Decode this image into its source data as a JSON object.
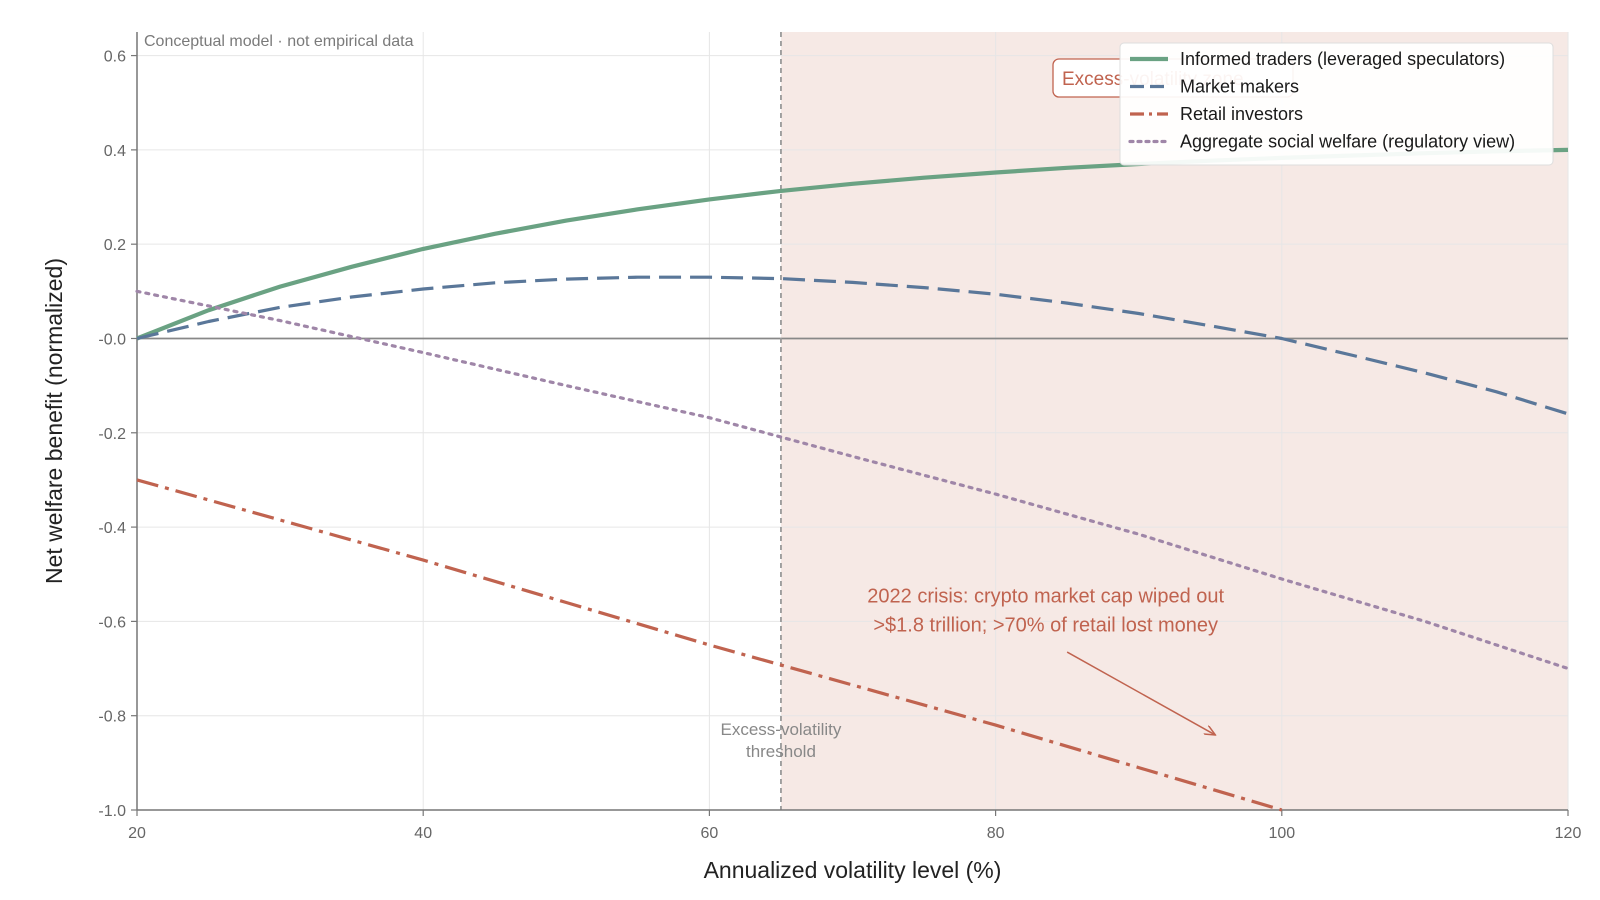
{
  "chart_data": {
    "type": "line",
    "title": "",
    "xlabel": "Annualized volatility level (%)",
    "ylabel": "Net welfare benefit (normalized)",
    "xlim": [
      20,
      120
    ],
    "ylim": [
      -1.0,
      0.65
    ],
    "x_ticks": [
      20,
      40,
      60,
      80,
      100,
      120
    ],
    "y_ticks": [
      0.6,
      0.4,
      0.2,
      0.0,
      -0.2,
      -0.4,
      -0.6,
      -0.8,
      -1.0
    ],
    "y_tick_labels": [
      "0.6",
      "0.4",
      "0.2",
      "-0.0",
      "-0.2",
      "-0.4",
      "-0.6",
      "-0.8",
      "-1.0"
    ],
    "x_tick_labels": [
      "20",
      "40",
      "60",
      "80",
      "100",
      "120"
    ],
    "grid": true,
    "legend_position": "top-right",
    "note": "Conceptual model · not empirical data",
    "series": [
      {
        "name": "Informed traders (leveraged speculators)",
        "color": "#6aa283",
        "style": "solid",
        "x": [
          20,
          25,
          30,
          35,
          40,
          45,
          50,
          55,
          60,
          65,
          70,
          75,
          80,
          85,
          90,
          95,
          100,
          105,
          110,
          115,
          120
        ],
        "y": [
          0.0,
          0.06,
          0.11,
          0.152,
          0.19,
          0.222,
          0.25,
          0.274,
          0.295,
          0.313,
          0.328,
          0.341,
          0.352,
          0.362,
          0.37,
          0.377,
          0.383,
          0.388,
          0.393,
          0.397,
          0.4
        ]
      },
      {
        "name": "Market makers",
        "color": "#5a7799",
        "style": "dashed",
        "x": [
          20,
          25,
          30,
          35,
          40,
          45,
          50,
          55,
          60,
          65,
          70,
          75,
          80,
          85,
          90,
          95,
          100,
          105,
          110,
          115,
          120
        ],
        "y": [
          0.0,
          0.036,
          0.066,
          0.088,
          0.105,
          0.118,
          0.126,
          0.13,
          0.13,
          0.127,
          0.119,
          0.108,
          0.094,
          0.075,
          0.053,
          0.027,
          0.0,
          -0.036,
          -0.073,
          -0.113,
          -0.16
        ]
      },
      {
        "name": "Retail investors",
        "color": "#c0634f",
        "style": "dashdot",
        "x": [
          20,
          30,
          40,
          50,
          60,
          70,
          80,
          90,
          100
        ],
        "y": [
          -0.3,
          -0.385,
          -0.47,
          -0.56,
          -0.65,
          -0.735,
          -0.82,
          -0.91,
          -1.0
        ]
      },
      {
        "name": "Aggregate social welfare (regulatory view)",
        "color": "#9f86a8",
        "style": "dotted",
        "x": [
          20,
          30,
          40,
          50,
          60,
          70,
          80,
          90,
          100,
          110,
          120
        ],
        "y": [
          0.1,
          0.038,
          -0.03,
          -0.1,
          -0.168,
          -0.25,
          -0.33,
          -0.415,
          -0.51,
          -0.6,
          -0.7
        ]
      }
    ],
    "reference_lines": {
      "horizontal_y": 0.0,
      "threshold_x": 65,
      "threshold_label_line1": "Excess-volatility",
      "threshold_label_line2": "threshold"
    },
    "shaded_zone": {
      "x_from": 65,
      "x_to": 120,
      "label": "Excess-volatility zone",
      "color": "#f6e9e5"
    },
    "annotation": {
      "line1": "2022 crisis: crypto market cap wiped out",
      "line2": ">$1.8 trillion; >70% of retail lost money",
      "text_x": 83.5,
      "text_y": -0.545,
      "arrow_from": [
        85,
        -0.665
      ],
      "arrow_to": [
        95.3,
        -0.84
      ]
    }
  }
}
